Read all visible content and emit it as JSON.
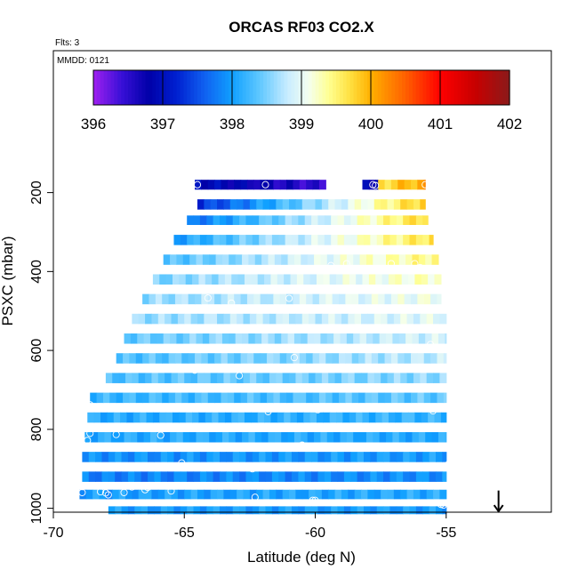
{
  "chart_data": {
    "type": "heatmap",
    "title": "ORCAS RF03 CO2.X",
    "note_flights": "Flts: 3",
    "note_date": "MMDD: 0121",
    "xlabel": "Latitude (deg N)",
    "ylabel": "PSXC (mbar)",
    "xlim": [
      -70,
      -51
    ],
    "ylim": [
      1010,
      90
    ],
    "y_reversed": true,
    "x_ticks": [
      -70,
      -65,
      -60,
      -55
    ],
    "y_ticks": [
      200,
      400,
      600,
      800,
      1000
    ],
    "grid": false,
    "colorbar": {
      "range": [
        396,
        402
      ],
      "ticks": [
        396,
        397,
        398,
        399,
        400,
        401,
        402
      ],
      "stops": [
        {
          "v": 396.0,
          "c": "#a020f0"
        },
        {
          "v": 396.4,
          "c": "#3a10d8"
        },
        {
          "v": 396.8,
          "c": "#0000a8"
        },
        {
          "v": 397.2,
          "c": "#0020d0"
        },
        {
          "v": 397.6,
          "c": "#1060f0"
        },
        {
          "v": 398.0,
          "c": "#10a0ff"
        },
        {
          "v": 398.4,
          "c": "#60c8ff"
        },
        {
          "v": 398.8,
          "c": "#c8ecff"
        },
        {
          "v": 399.1,
          "c": "#f4fff0"
        },
        {
          "v": 399.4,
          "c": "#ffff90"
        },
        {
          "v": 399.7,
          "c": "#ffe040"
        },
        {
          "v": 400.0,
          "c": "#ffb000"
        },
        {
          "v": 400.5,
          "c": "#ff6000"
        },
        {
          "v": 401.0,
          "c": "#ff0000"
        },
        {
          "v": 401.5,
          "c": "#c80000"
        },
        {
          "v": 402.0,
          "c": "#8b1a1a"
        }
      ]
    },
    "bands": [
      {
        "p": 180,
        "dp": 25,
        "lat_min": -64.6,
        "lat_max": -59.6,
        "v0": 397.0,
        "v1": 396.4
      },
      {
        "p": 180,
        "dp": 25,
        "lat_min": -58.2,
        "lat_max": -57.6,
        "v0": 396.9,
        "v1": 396.9
      },
      {
        "p": 180,
        "dp": 25,
        "lat_min": -57.6,
        "lat_max": -55.8,
        "v0": 399.7,
        "v1": 400.1
      },
      {
        "p": 230,
        "dp": 26,
        "lat_min": -64.5,
        "lat_max": -55.8,
        "v0": 397.3,
        "v1": 399.9
      },
      {
        "p": 270,
        "dp": 24,
        "lat_min": -64.9,
        "lat_max": -55.7,
        "v0": 397.7,
        "v1": 399.8
      },
      {
        "p": 320,
        "dp": 26,
        "lat_min": -65.4,
        "lat_max": -55.5,
        "v0": 398.0,
        "v1": 399.7
      },
      {
        "p": 370,
        "dp": 26,
        "lat_min": -65.8,
        "lat_max": -55.3,
        "v0": 398.3,
        "v1": 399.5
      },
      {
        "p": 420,
        "dp": 26,
        "lat_min": -66.2,
        "lat_max": -55.2,
        "v0": 398.5,
        "v1": 399.3
      },
      {
        "p": 470,
        "dp": 26,
        "lat_min": -66.6,
        "lat_max": -55.2,
        "v0": 398.6,
        "v1": 399.1
      },
      {
        "p": 520,
        "dp": 26,
        "lat_min": -67.0,
        "lat_max": -55.0,
        "v0": 398.6,
        "v1": 399.0
      },
      {
        "p": 570,
        "dp": 26,
        "lat_min": -67.3,
        "lat_max": -55.0,
        "v0": 398.4,
        "v1": 398.9
      },
      {
        "p": 620,
        "dp": 26,
        "lat_min": -67.6,
        "lat_max": -55.0,
        "v0": 398.3,
        "v1": 398.8
      },
      {
        "p": 670,
        "dp": 26,
        "lat_min": -68.0,
        "lat_max": -55.0,
        "v0": 398.3,
        "v1": 398.6
      },
      {
        "p": 720,
        "dp": 26,
        "lat_min": -68.6,
        "lat_max": -55.0,
        "v0": 398.2,
        "v1": 398.4
      },
      {
        "p": 770,
        "dp": 26,
        "lat_min": -68.7,
        "lat_max": -55.0,
        "v0": 398.1,
        "v1": 398.2
      },
      {
        "p": 820,
        "dp": 26,
        "lat_min": -68.8,
        "lat_max": -55.0,
        "v0": 398.1,
        "v1": 398.1
      },
      {
        "p": 870,
        "dp": 26,
        "lat_min": -68.9,
        "lat_max": -55.0,
        "v0": 397.9,
        "v1": 398.0
      },
      {
        "p": 920,
        "dp": 26,
        "lat_min": -68.9,
        "lat_max": -55.0,
        "v0": 397.8,
        "v1": 397.9
      },
      {
        "p": 965,
        "dp": 24,
        "lat_min": -69.0,
        "lat_max": -55.0,
        "v0": 398.0,
        "v1": 398.1
      },
      {
        "p": 1005,
        "dp": 20,
        "lat_min": -67.9,
        "lat_max": -55.0,
        "v0": 398.0,
        "v1": 398.0
      }
    ],
    "obs_points": [
      {
        "lat": -64.5,
        "p": 180
      },
      {
        "lat": -61.9,
        "p": 180
      },
      {
        "lat": -57.8,
        "p": 180
      },
      {
        "lat": -57.7,
        "p": 182
      },
      {
        "lat": -55.8,
        "p": 180
      },
      {
        "lat": -59.4,
        "p": 385
      },
      {
        "lat": -58.8,
        "p": 380
      },
      {
        "lat": -57.1,
        "p": 380
      },
      {
        "lat": -56.2,
        "p": 380
      },
      {
        "lat": -56.0,
        "p": 390
      },
      {
        "lat": -64.1,
        "p": 467
      },
      {
        "lat": -63.2,
        "p": 480
      },
      {
        "lat": -61.0,
        "p": 468
      },
      {
        "lat": -61.4,
        "p": 548
      },
      {
        "lat": -59.5,
        "p": 546
      },
      {
        "lat": -55.9,
        "p": 548
      },
      {
        "lat": -55.6,
        "p": 585
      },
      {
        "lat": -60.8,
        "p": 618
      },
      {
        "lat": -64.6,
        "p": 650
      },
      {
        "lat": -62.9,
        "p": 664
      },
      {
        "lat": -68.6,
        "p": 738
      },
      {
        "lat": -61.8,
        "p": 755
      },
      {
        "lat": -59.9,
        "p": 750
      },
      {
        "lat": -55.5,
        "p": 753
      },
      {
        "lat": -68.6,
        "p": 810
      },
      {
        "lat": -68.7,
        "p": 828
      },
      {
        "lat": -67.6,
        "p": 813
      },
      {
        "lat": -65.9,
        "p": 815
      },
      {
        "lat": -60.5,
        "p": 840
      },
      {
        "lat": -65.1,
        "p": 885
      },
      {
        "lat": -62.4,
        "p": 900
      },
      {
        "lat": -54.9,
        "p": 888
      },
      {
        "lat": -68.9,
        "p": 945
      },
      {
        "lat": -68.9,
        "p": 960
      },
      {
        "lat": -68.2,
        "p": 958
      },
      {
        "lat": -68.0,
        "p": 961
      },
      {
        "lat": -67.9,
        "p": 966
      },
      {
        "lat": -67.3,
        "p": 960
      },
      {
        "lat": -67.0,
        "p": 946
      },
      {
        "lat": -66.5,
        "p": 953
      },
      {
        "lat": -66.4,
        "p": 947
      },
      {
        "lat": -65.5,
        "p": 956
      },
      {
        "lat": -62.3,
        "p": 972
      },
      {
        "lat": -60.1,
        "p": 980
      },
      {
        "lat": -60.0,
        "p": 980
      },
      {
        "lat": -55.2,
        "p": 990
      },
      {
        "lat": -55.1,
        "p": 992
      }
    ],
    "arrow_marker": {
      "lat": -53.0,
      "p_from": 955,
      "p_to": 1010
    }
  }
}
